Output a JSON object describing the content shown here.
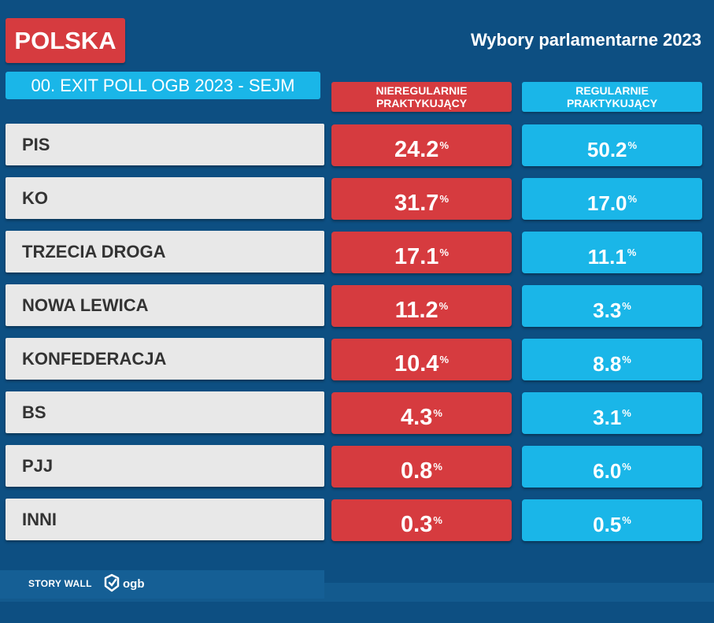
{
  "header": {
    "region": "POLSKA",
    "title": "Wybory parlamentarne 2023",
    "subtitle": "00. EXIT POLL OGB 2023 - SEJM"
  },
  "chart_data": {
    "type": "table",
    "unit": "%",
    "columns": [
      {
        "name_lines": [
          "NIEREGULARNIE",
          "PRAKTYKUJĄCY"
        ],
        "color": "#d63b3f"
      },
      {
        "name_lines": [
          "REGULARNIE",
          "PRAKTYKUJĄCY"
        ],
        "color": "#1ab6e8"
      }
    ],
    "rows": [
      {
        "label": "PIS",
        "values": [
          "24.2",
          "50.2"
        ]
      },
      {
        "label": "KO",
        "values": [
          "31.7",
          "17.0"
        ]
      },
      {
        "label": "TRZECIA DROGA",
        "values": [
          "17.1",
          "11.1"
        ]
      },
      {
        "label": "NOWA LEWICA",
        "values": [
          "11.2",
          "3.3"
        ]
      },
      {
        "label": "KONFEDERACJA",
        "values": [
          "10.4",
          "8.8"
        ]
      },
      {
        "label": "BS",
        "values": [
          "4.3",
          "3.1"
        ]
      },
      {
        "label": "PJJ",
        "values": [
          "0.8",
          "6.0"
        ]
      },
      {
        "label": "INNI",
        "values": [
          "0.3",
          "0.5"
        ]
      }
    ]
  },
  "footer": {
    "brand": "STORY WALL",
    "logo_text": "ogb",
    "logo_icon": "ogb-logo-icon"
  }
}
